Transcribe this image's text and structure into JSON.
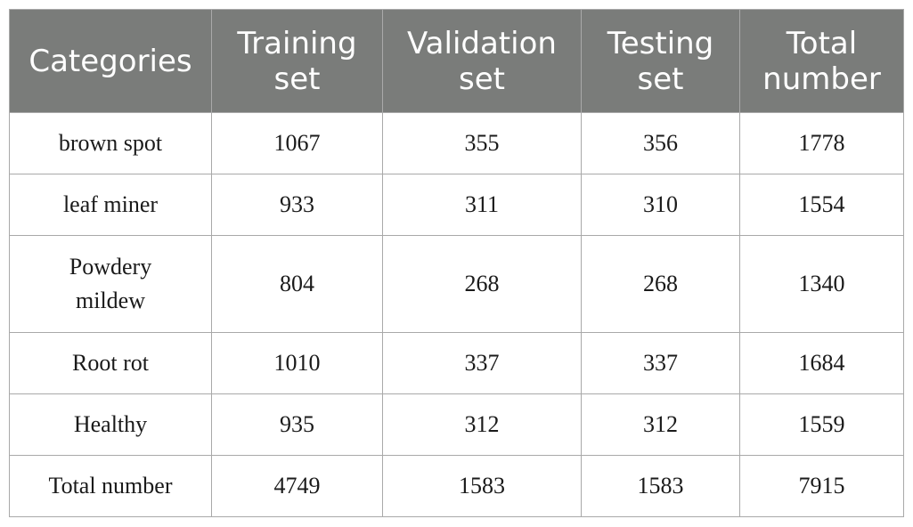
{
  "table": {
    "headers": [
      [
        "Training",
        "set"
      ],
      [
        "Validation",
        "set"
      ],
      [
        "Testing",
        "set"
      ],
      [
        "Total",
        "number"
      ]
    ],
    "first_header": "Categories",
    "rows": [
      {
        "label": [
          "brown spot"
        ],
        "values": [
          "1067",
          "355",
          "356",
          "1778"
        ]
      },
      {
        "label": [
          "leaf miner"
        ],
        "values": [
          "933",
          "311",
          "310",
          "1554"
        ]
      },
      {
        "label": [
          "Powdery",
          "mildew"
        ],
        "values": [
          "804",
          "268",
          "268",
          "1340"
        ]
      },
      {
        "label": [
          "Root rot"
        ],
        "values": [
          "1010",
          "337",
          "337",
          "1684"
        ]
      },
      {
        "label": [
          "Healthy"
        ],
        "values": [
          "935",
          "312",
          "312",
          "1559"
        ]
      },
      {
        "label": [
          "Total number"
        ],
        "values": [
          "4749",
          "1583",
          "1583",
          "7915"
        ]
      }
    ]
  }
}
